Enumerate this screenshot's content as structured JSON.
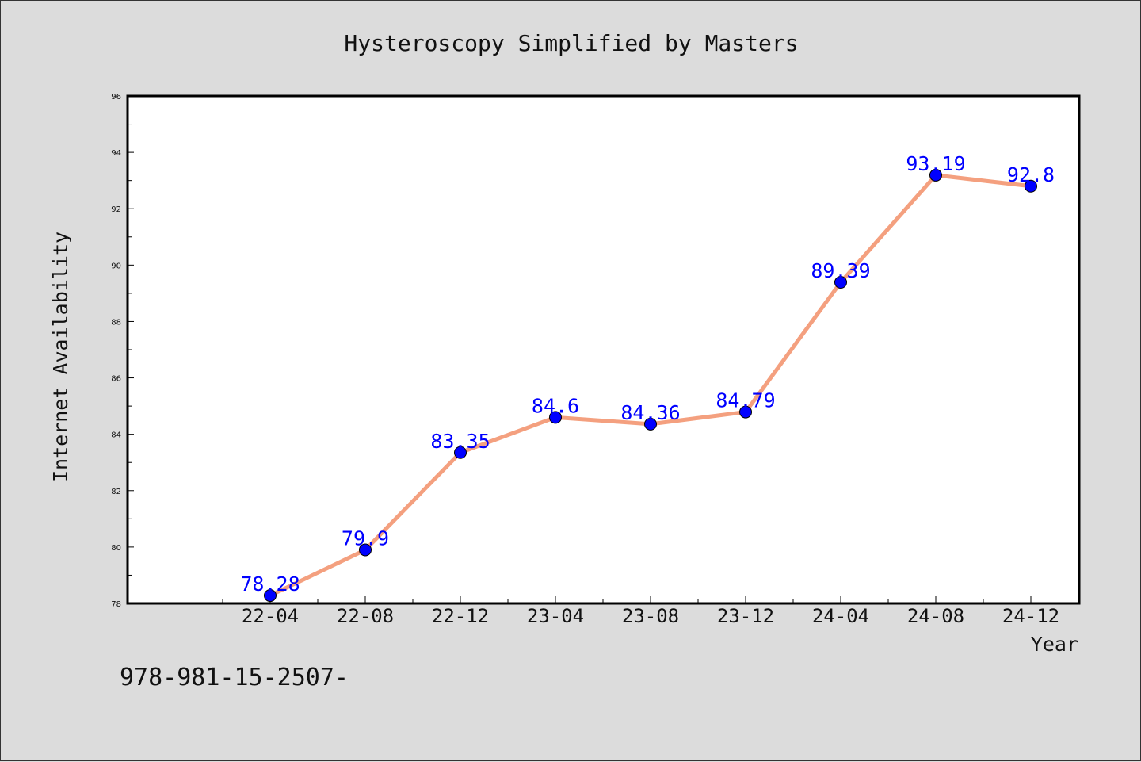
{
  "chart_data": {
    "type": "line",
    "title": "Hysteroscopy Simplified by Masters",
    "xlabel": "Year",
    "ylabel": "Internet Availability",
    "categories": [
      "22-04",
      "22-08",
      "22-12",
      "23-04",
      "23-08",
      "23-12",
      "24-04",
      "24-08",
      "24-12"
    ],
    "series": [
      {
        "values": [
          78.28,
          79.9,
          83.35,
          84.6,
          84.36,
          84.79,
          89.39,
          93.19,
          92.8
        ],
        "data_labels": [
          "78.28",
          "79.9",
          "83.35",
          "84.6",
          "84.36",
          "84.79",
          "89.39",
          "93.19",
          "92.8"
        ],
        "line_color": "#f4a07f",
        "marker_color": "#0000ff"
      }
    ],
    "ylim": [
      78,
      96
    ],
    "yticks": [
      78,
      80,
      82,
      84,
      86,
      88,
      90,
      92,
      94,
      96
    ],
    "grid": false,
    "legend": "none"
  },
  "footnote": "978-981-15-2507-"
}
